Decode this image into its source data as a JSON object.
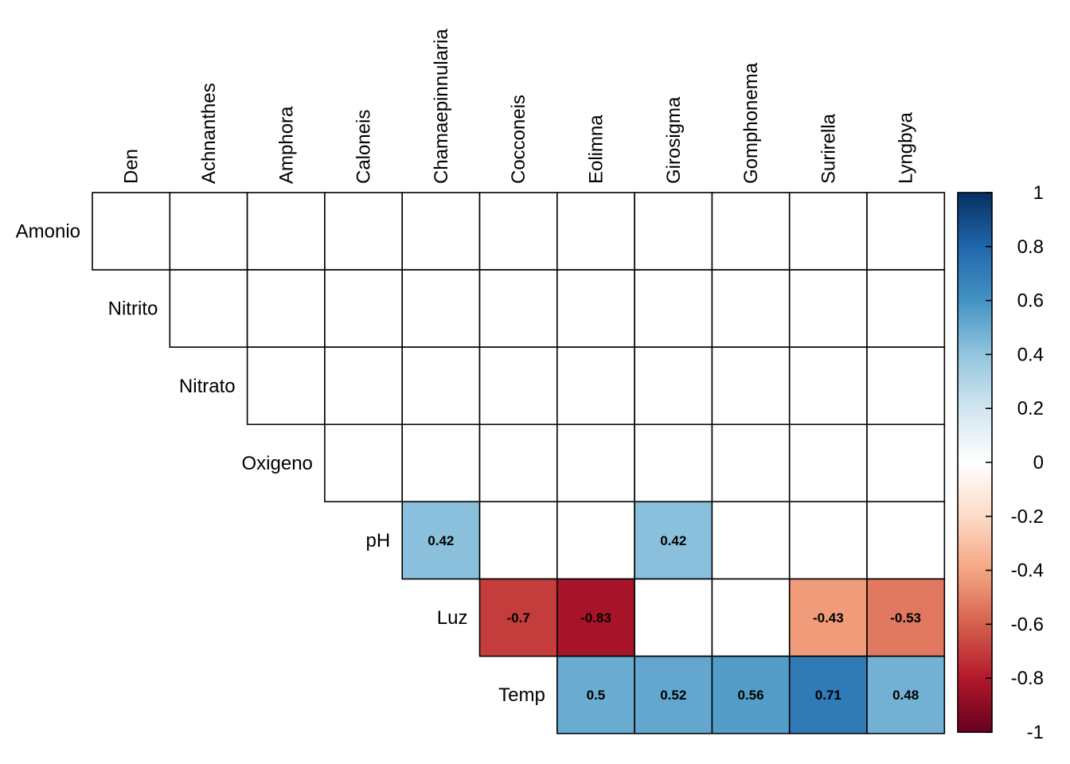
{
  "chart_data": {
    "type": "heatmap",
    "title": "",
    "columns": [
      "Den",
      "Achnanthes",
      "Amphora",
      "Caloneis",
      "Chamaepinnularia",
      "Cocconeis",
      "Eolimna",
      "Girosigma",
      "Gomphonema",
      "Surirella",
      "Lyngbya"
    ],
    "rows": [
      "Amonio",
      "Nitrito",
      "Nitrato",
      "Oxigeno",
      "pH",
      "Luz",
      "Temp"
    ],
    "row_start_col": [
      0,
      1,
      2,
      3,
      4,
      5,
      6
    ],
    "values": [
      [
        null,
        null,
        null,
        null,
        null,
        null,
        null,
        null,
        null,
        null,
        null
      ],
      [
        null,
        null,
        null,
        null,
        null,
        null,
        null,
        null,
        null,
        null,
        null
      ],
      [
        null,
        null,
        null,
        null,
        null,
        null,
        null,
        null,
        null,
        null,
        null
      ],
      [
        null,
        null,
        null,
        null,
        null,
        null,
        null,
        null,
        null,
        null,
        null
      ],
      [
        null,
        null,
        null,
        null,
        0.42,
        null,
        null,
        0.42,
        null,
        null,
        null
      ],
      [
        null,
        null,
        null,
        null,
        null,
        -0.7,
        -0.83,
        null,
        null,
        -0.43,
        -0.53
      ],
      [
        null,
        null,
        null,
        null,
        null,
        null,
        0.5,
        0.52,
        0.56,
        0.71,
        0.48
      ]
    ],
    "value_labels": [
      [
        "",
        "",
        "",
        "",
        "",
        "",
        "",
        "",
        "",
        "",
        ""
      ],
      [
        "",
        "",
        "",
        "",
        "",
        "",
        "",
        "",
        "",
        "",
        ""
      ],
      [
        "",
        "",
        "",
        "",
        "",
        "",
        "",
        "",
        "",
        "",
        ""
      ],
      [
        "",
        "",
        "",
        "",
        "",
        "",
        "",
        "",
        "",
        "",
        ""
      ],
      [
        "",
        "",
        "",
        "",
        "0.42",
        "",
        "",
        "0.42",
        "",
        "",
        ""
      ],
      [
        "",
        "",
        "",
        "",
        "",
        "-0.7",
        "-0.83",
        "",
        "",
        "-0.43",
        "-0.53"
      ],
      [
        "",
        "",
        "",
        "",
        "",
        "",
        "0.5",
        "0.52",
        "0.56",
        "0.71",
        "0.48"
      ]
    ],
    "colorbar": {
      "range": [
        -1,
        1
      ],
      "ticks": [
        "1",
        "0.8",
        "0.6",
        "0.4",
        "0.2",
        "0",
        "-0.2",
        "-0.4",
        "-0.6",
        "-0.8",
        "-1"
      ],
      "colors": [
        "#67001f",
        "#b2182b",
        "#d6604d",
        "#f4a582",
        "#fddbc7",
        "#ffffff",
        "#d1e5f0",
        "#92c5de",
        "#4393c3",
        "#2166ac",
        "#053061"
      ]
    },
    "legend_position": "right",
    "grid": true
  }
}
